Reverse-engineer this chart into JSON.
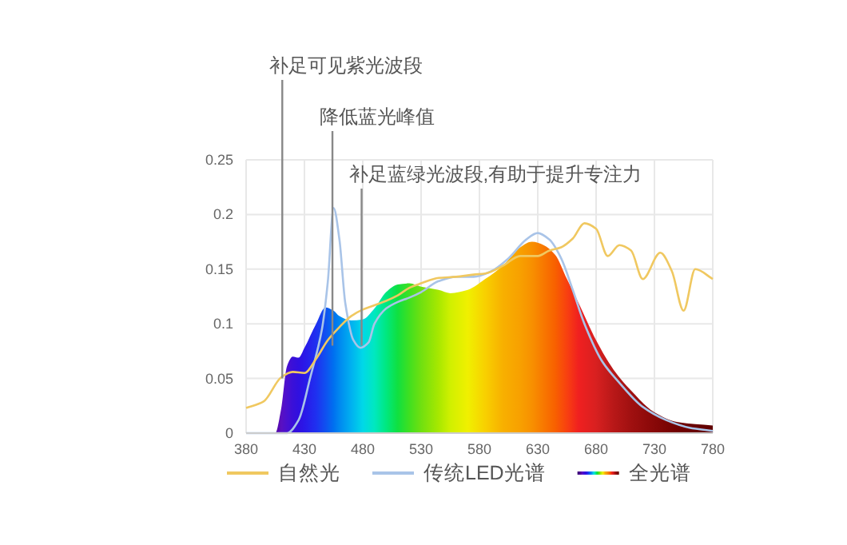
{
  "chart_data": {
    "type": "line",
    "xlim": [
      380,
      780
    ],
    "ylim": [
      0,
      0.25
    ],
    "xticks": [
      380,
      430,
      480,
      530,
      580,
      630,
      680,
      730,
      780
    ],
    "yticks": [
      0,
      0.05,
      0.1,
      0.15,
      0.2,
      0.25
    ],
    "grid": true,
    "legend": "bottom",
    "marker": "none",
    "line_style": "solid",
    "annotations": [
      {
        "text": "补足可见紫光波段",
        "x": 411,
        "y": 0.05
      },
      {
        "text": "降低蓝光峰值",
        "x": 454,
        "y": 0.08
      },
      {
        "text": "补足蓝绿光波段,有助于提升专注力",
        "x": 479,
        "y": 0.08
      }
    ],
    "series": [
      {
        "name": "全光谱",
        "type": "area",
        "x": [
          380,
          390,
          400,
          405,
          410,
          415,
          420,
          425,
          430,
          440,
          448,
          455,
          460,
          470,
          480,
          490,
          500,
          510,
          520,
          530,
          545,
          555,
          570,
          585,
          600,
          615,
          625,
          635,
          645,
          655,
          665,
          680,
          695,
          710,
          730,
          750,
          780
        ],
        "values": [
          0,
          0,
          0,
          0,
          0.022,
          0.061,
          0.07,
          0.069,
          0.078,
          0.1,
          0.115,
          0.112,
          0.107,
          0.103,
          0.104,
          0.114,
          0.129,
          0.136,
          0.137,
          0.134,
          0.131,
          0.128,
          0.131,
          0.141,
          0.153,
          0.17,
          0.175,
          0.172,
          0.163,
          0.141,
          0.119,
          0.085,
          0.058,
          0.039,
          0.019,
          0.01,
          0.007
        ],
        "colors": [
          "#3a0070",
          "#3f0080",
          "#48008f",
          "#5000a0",
          "#5a10c0",
          "#4a10d0",
          "#3a10d8",
          "#3010e0",
          "#2a18e8",
          "#1f30f0",
          "#1050f0",
          "#0070f0",
          "#0088f0",
          "#00b0f0",
          "#00d8e8",
          "#00e8c0",
          "#00e880",
          "#10e040",
          "#40e020",
          "#70e010",
          "#a8e800",
          "#d0f000",
          "#f0f000",
          "#f8d000",
          "#f8b000",
          "#f8a000",
          "#f89000",
          "#f87800",
          "#f86000",
          "#f84010",
          "#f02020",
          "#d82020",
          "#b81818",
          "#a01010",
          "#880808",
          "#700000",
          "#600000"
        ]
      },
      {
        "name": "传统LED光谱",
        "color": "#a9c4e8",
        "x": [
          380,
          415,
          425,
          435,
          445,
          450,
          455,
          460,
          465,
          472,
          478,
          485,
          490,
          500,
          510,
          520,
          530,
          545,
          560,
          575,
          590,
          605,
          620,
          630,
          640,
          650,
          660,
          670,
          685,
          700,
          720,
          740,
          760,
          780
        ],
        "values": [
          0,
          0,
          0.012,
          0.051,
          0.095,
          0.138,
          0.206,
          0.177,
          0.119,
          0.085,
          0.078,
          0.083,
          0.1,
          0.114,
          0.12,
          0.124,
          0.129,
          0.139,
          0.143,
          0.143,
          0.148,
          0.16,
          0.177,
          0.183,
          0.177,
          0.16,
          0.131,
          0.1,
          0.066,
          0.046,
          0.024,
          0.012,
          0.005,
          0.002
        ]
      },
      {
        "name": "自然光",
        "color": "#f0c860",
        "x": [
          380,
          395,
          410,
          420,
          430,
          440,
          450,
          460,
          470,
          480,
          490,
          500,
          510,
          520,
          530,
          545,
          560,
          575,
          585,
          600,
          615,
          630,
          640,
          650,
          660,
          670,
          680,
          690,
          700,
          710,
          720,
          735,
          745,
          755,
          765,
          780
        ],
        "values": [
          0.023,
          0.029,
          0.051,
          0.056,
          0.055,
          0.068,
          0.085,
          0.097,
          0.107,
          0.113,
          0.117,
          0.121,
          0.126,
          0.133,
          0.137,
          0.142,
          0.143,
          0.145,
          0.146,
          0.153,
          0.162,
          0.162,
          0.167,
          0.17,
          0.178,
          0.192,
          0.187,
          0.162,
          0.172,
          0.167,
          0.141,
          0.165,
          0.148,
          0.112,
          0.15,
          0.141
        ]
      }
    ]
  }
}
